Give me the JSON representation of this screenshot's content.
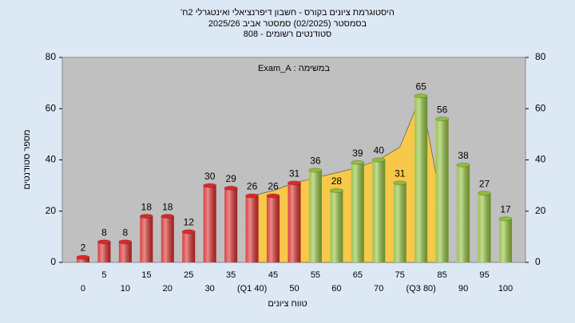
{
  "chart_data": {
    "type": "bar",
    "title": "היסטוגרמת ציונים בקורס - חשבון דיפרנציאלי ואינטגרלי 2ח'",
    "subtitle": "בסמסטר (02/2025) סמסטר אביב 2025/26",
    "subtitle2": "סטודנטים רשומים - 808",
    "annotation": "במשימה : Exam_A",
    "x_label": "טווח ציונים",
    "y_label": "מספר סטודנטים",
    "categories": [
      "0",
      "5",
      "10",
      "15",
      "20",
      "25",
      "30",
      "35",
      "(Q1 40)",
      "45",
      "50",
      "55",
      "60",
      "65",
      "70",
      "75",
      "(Q3 80)",
      "85",
      "90",
      "95",
      "100"
    ],
    "values": [
      2,
      8,
      8,
      18,
      18,
      12,
      30,
      29,
      26,
      26,
      31,
      36,
      28,
      39,
      40,
      31,
      65,
      56,
      38,
      27,
      17
    ],
    "colors": [
      "#d82a2a",
      "#d82a2a",
      "#d82a2a",
      "#d82a2a",
      "#d82a2a",
      "#d82a2a",
      "#d82a2a",
      "#d82a2a",
      "#d82a2a",
      "#d82a2a",
      "#d82a2a",
      "#8fbf3a",
      "#8fbf3a",
      "#8fbf3a",
      "#8fbf3a",
      "#8fbf3a",
      "#8fbf3a",
      "#8fbf3a",
      "#8fbf3a",
      "#8fbf3a",
      "#8fbf3a"
    ],
    "overlay": {
      "color": "#f7c84a",
      "values": [
        null,
        null,
        null,
        null,
        null,
        null,
        null,
        null,
        26,
        28,
        31,
        33,
        35,
        37,
        40,
        45,
        65,
        22,
        null,
        null,
        null
      ]
    },
    "ylim": [
      0,
      80
    ],
    "yticks": [
      0,
      20,
      40,
      60,
      80
    ],
    "y2lim": [
      0,
      80
    ],
    "y2ticks": [
      0,
      20,
      40,
      60,
      80
    ]
  }
}
